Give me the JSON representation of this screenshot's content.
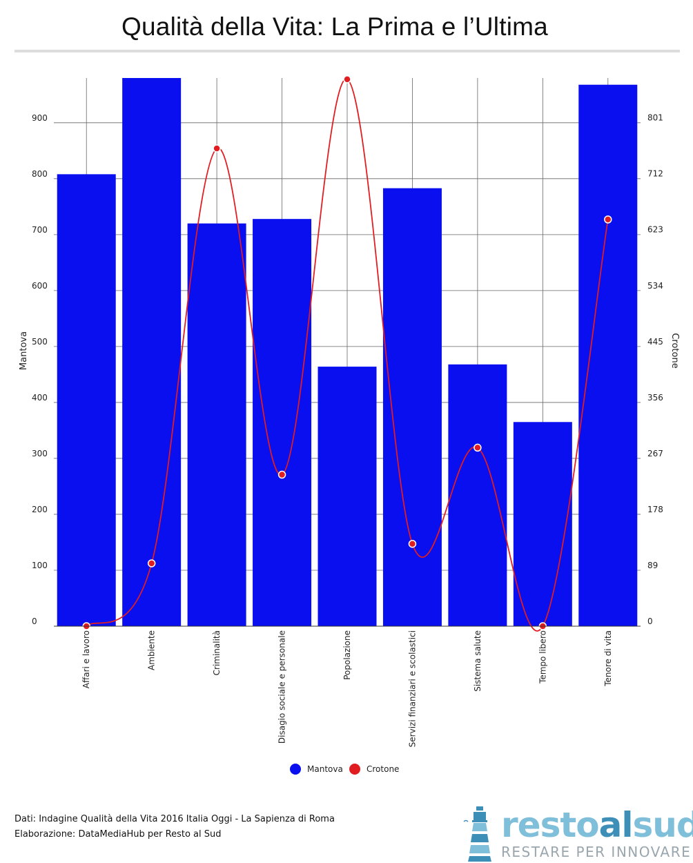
{
  "title": "Qualità della Vita: La Prima e l’Ultima",
  "footer": {
    "line1": "Dati: Indagine Qualità della Vita 2016 Italia Oggi - La Sapienza di Roma",
    "line2": "Elaborazione: DataMediaHub per Resto al Sud"
  },
  "logo": {
    "word_light": "resto",
    "word_dark": "al",
    "word_light2": "sud",
    "tagline": "RESTARE PER INNOVARE"
  },
  "colors": {
    "mantova": "#0a0ff0",
    "crotone": "#e01e22",
    "grid": "#666666"
  },
  "chart_data": {
    "type": "bar",
    "categories": [
      "Affari e lavoro",
      "Ambiente",
      "Criminalità",
      "Disagio sociale e personale",
      "Popolazione",
      "Servizi finanziari e scolastici",
      "Sistema salute",
      "Tempo libero",
      "Tenore di vita"
    ],
    "series": [
      {
        "name": "Mantova",
        "type": "bar",
        "axis": "left",
        "values": [
          808,
          980,
          720,
          728,
          464,
          783,
          468,
          365,
          968
        ]
      },
      {
        "name": "Crotone",
        "type": "line",
        "axis": "right",
        "smooth": true,
        "values": [
          0,
          100,
          760,
          241,
          870,
          131,
          284,
          0,
          647
        ]
      }
    ],
    "y_left": {
      "label": "Mantova",
      "range": [
        0,
        980
      ],
      "ticks": [
        0,
        100,
        200,
        300,
        400,
        500,
        600,
        700,
        800,
        900
      ]
    },
    "y_right": {
      "label": "Crotone",
      "range": [
        0,
        872
      ],
      "ticks": [
        0,
        89,
        178,
        267,
        356,
        445,
        534,
        623,
        712,
        801
      ]
    },
    "grid": true,
    "legend": {
      "position": "bottom-center",
      "entries": [
        "Mantova",
        "Crotone"
      ]
    }
  }
}
